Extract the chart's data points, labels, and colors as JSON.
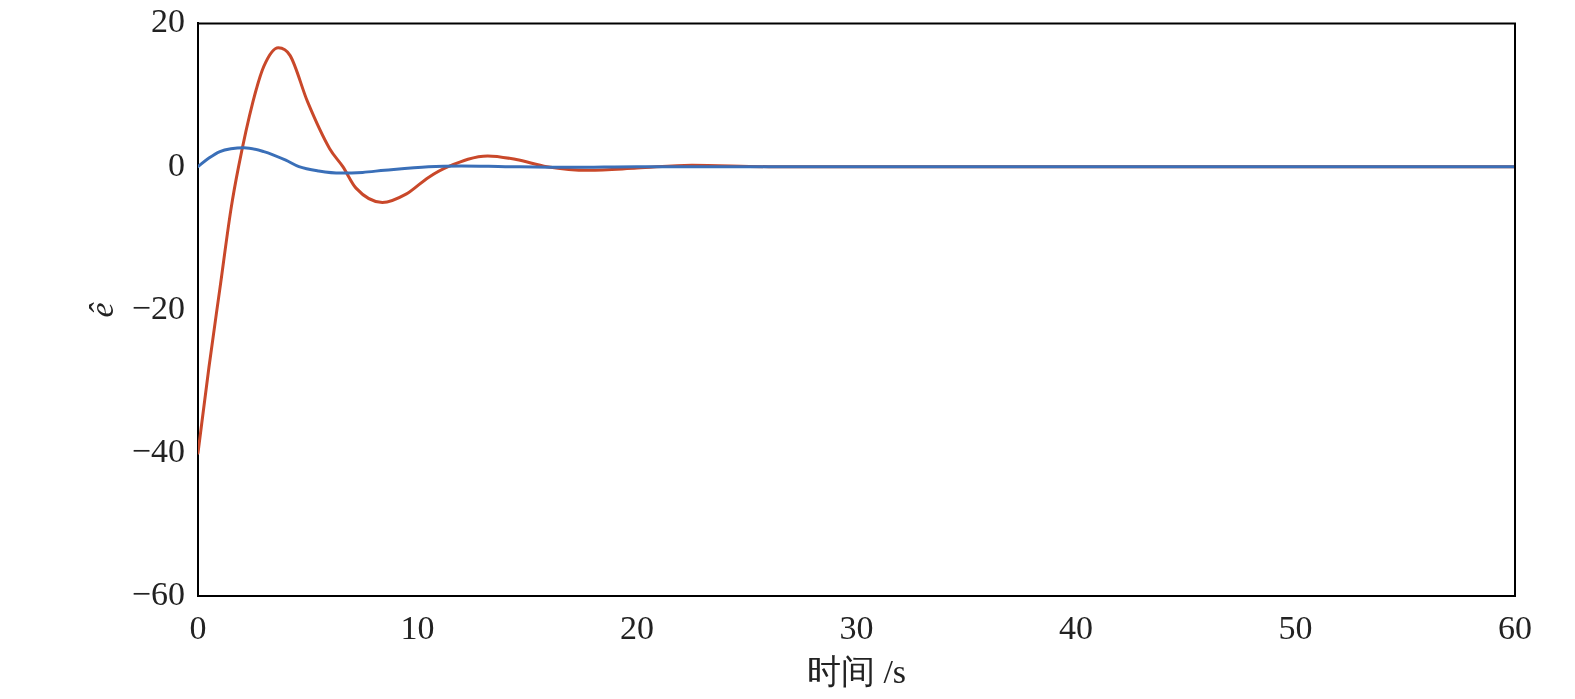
{
  "chart_data": {
    "type": "line",
    "xlabel": "时间 /s",
    "ylabel": "ê",
    "xlim": [
      0,
      60
    ],
    "xticks": [
      0,
      10,
      20,
      30,
      40,
      50,
      60
    ],
    "ylim": [
      -60,
      20
    ],
    "yticks": [
      -60,
      -40,
      -20,
      0,
      20
    ],
    "grid": false,
    "legend": false,
    "marker": "none",
    "line_style": "solid",
    "series": [
      {
        "color": "#3a6fb8",
        "x": [
          0,
          0.5,
          1,
          1.5,
          2.1,
          3,
          4,
          4.6,
          5.5,
          6.5,
          7.5,
          8.5,
          10.5,
          12,
          14,
          17,
          20,
          25,
          30,
          60
        ],
        "values": [
          0,
          1.2,
          2.1,
          2.5,
          2.65,
          2.1,
          0.9,
          0,
          -0.6,
          -0.9,
          -0.8,
          -0.5,
          0,
          0.1,
          0,
          -0.1,
          0,
          0,
          0,
          0
        ]
      },
      {
        "color": "#c9482a",
        "x": [
          0,
          0.5,
          1,
          1.5,
          1.85,
          2.5,
          3,
          3.66,
          4.2,
          5,
          6,
          6.6,
          7.2,
          8.4,
          9.5,
          10.5,
          11.4,
          13.2,
          14.5,
          15.9,
          17.8,
          20,
          22.5,
          26,
          30,
          60
        ],
        "values": [
          -40,
          -28,
          -17,
          -6,
          0,
          9,
          14,
          16.6,
          15.5,
          9,
          2.5,
          0,
          -3,
          -5,
          -3.8,
          -1.5,
          0,
          1.5,
          1,
          0,
          -0.5,
          -0.2,
          0.2,
          0,
          0,
          0
        ]
      }
    ]
  }
}
